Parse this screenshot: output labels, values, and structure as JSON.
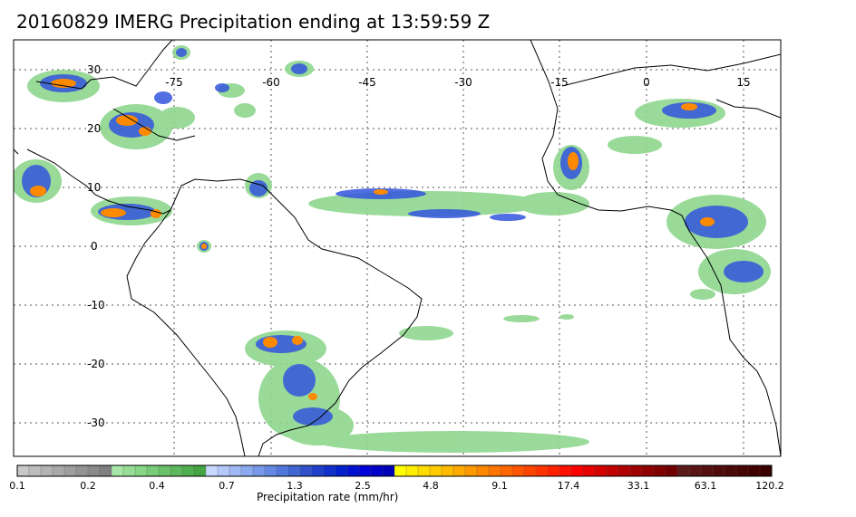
{
  "title": "20160829 IMERG Precipitation ending at 13:59:59 Z",
  "map": {
    "lon_labels": [
      "-75",
      "-60",
      "-45",
      "-30",
      "-15",
      "0",
      "15"
    ],
    "lat_labels": [
      "30",
      "20",
      "10",
      "0",
      "-10",
      "-20",
      "-30"
    ]
  },
  "colorbar": {
    "title": "Precipitation rate (mm/hr)",
    "tick_labels": [
      "0.1",
      "0.2",
      "0.4",
      "0.7",
      "1.3",
      "2.5",
      "4.8",
      "9.1",
      "17.4",
      "33.1",
      "63.1",
      "120.2"
    ],
    "colors": [
      "#c8c8c8",
      "#bdbdbd",
      "#b3b3b3",
      "#a8a8a8",
      "#9e9e9e",
      "#949494",
      "#8a8a8a",
      "#808080",
      "#a6e6a6",
      "#96de96",
      "#86d686",
      "#78cc78",
      "#6ac26a",
      "#5cb85c",
      "#4fae4f",
      "#42a442",
      "#c8d8ff",
      "#b4c8fa",
      "#a0b8f5",
      "#8caaf0",
      "#7898ea",
      "#6488e4",
      "#5078dc",
      "#4066d4",
      "#3050cc",
      "#2040cc",
      "#1030cc",
      "#0020cc",
      "#0010d0",
      "#0000d8",
      "#0000c8",
      "#0000b8",
      "#ffff00",
      "#ffee00",
      "#ffdd00",
      "#ffcc00",
      "#ffbb00",
      "#ffaa00",
      "#ff9900",
      "#ff8800",
      "#ff7700",
      "#ff6600",
      "#ff5500",
      "#ff4400",
      "#ff3300",
      "#ff2200",
      "#ff1100",
      "#ff0000",
      "#e60000",
      "#d40000",
      "#c20000",
      "#b00000",
      "#a00000",
      "#900000",
      "#800000",
      "#700000",
      "#5a1a1a",
      "#5a1414",
      "#551010",
      "#500c0c",
      "#4b0808",
      "#460404",
      "#400000",
      "#3a0000"
    ]
  }
}
